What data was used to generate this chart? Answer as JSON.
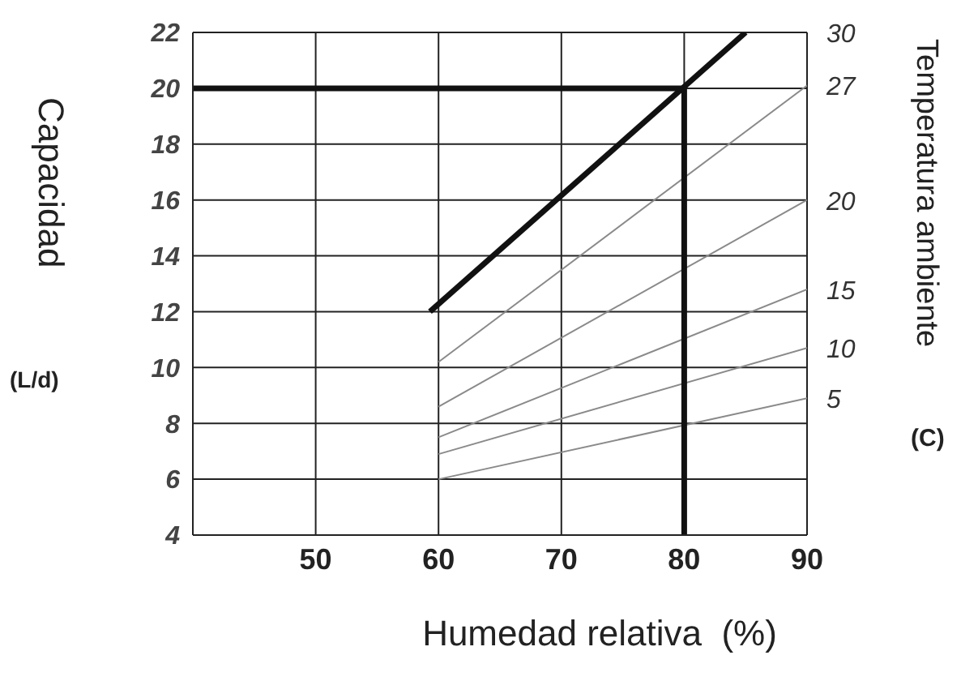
{
  "chart_data": {
    "type": "line",
    "xlabel": "Humedad relativa  (%)",
    "ylabel": "Capacidad",
    "y2label": "Temperatura ambiente",
    "annotations": [
      "(L/d)",
      "(C)"
    ],
    "xlim": [
      40,
      90
    ],
    "xticks": [
      50,
      60,
      70,
      80,
      90
    ],
    "ylim": [
      4,
      22
    ],
    "yticks": [
      4,
      6,
      8,
      10,
      12,
      14,
      16,
      18,
      20,
      22
    ],
    "grid": true,
    "marker": "none",
    "series": [
      {
        "name": "30",
        "color": "#111111",
        "x": [
          59.3,
          85
        ],
        "values": [
          12,
          22
        ]
      },
      {
        "name": "27",
        "color": "#8a8a8a",
        "x": [
          60,
          90
        ],
        "values": [
          10.2,
          20.1
        ]
      },
      {
        "name": "20",
        "color": "#8a8a8a",
        "x": [
          60,
          90
        ],
        "values": [
          8.6,
          16
        ]
      },
      {
        "name": "15",
        "color": "#8a8a8a",
        "x": [
          60,
          90
        ],
        "values": [
          7.5,
          12.8
        ]
      },
      {
        "name": "10",
        "color": "#8a8a8a",
        "x": [
          60,
          90
        ],
        "values": [
          6.9,
          10.7
        ]
      },
      {
        "name": "5",
        "color": "#8a8a8a",
        "x": [
          60,
          90
        ],
        "values": [
          6,
          8.9
        ]
      },
      {
        "color": "#111111",
        "x": [
          40,
          80,
          80
        ],
        "values": [
          20,
          20,
          4
        ]
      }
    ]
  }
}
